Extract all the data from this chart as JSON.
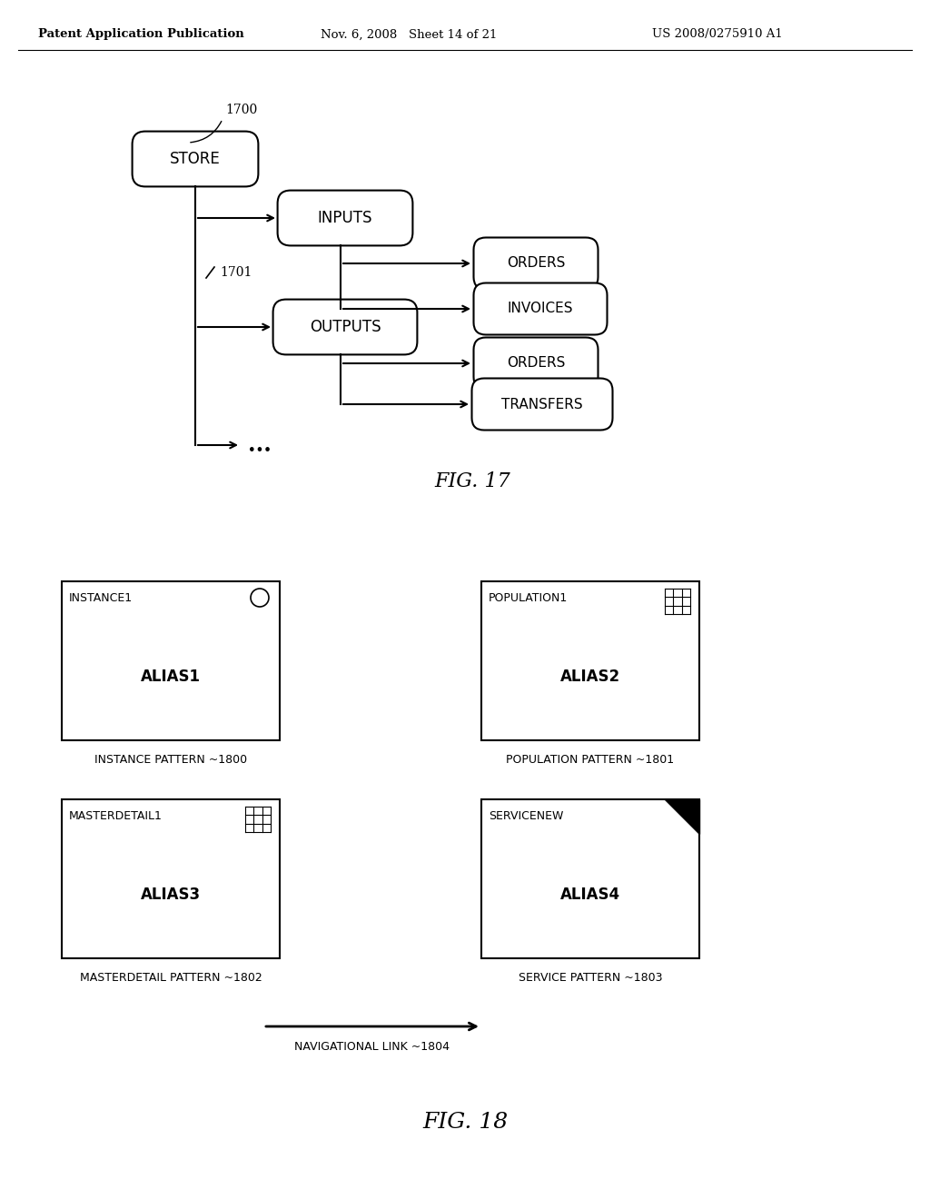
{
  "header_left": "Patent Application Publication",
  "header_mid": "Nov. 6, 2008   Sheet 14 of 21",
  "header_right": "US 2008/0275910 A1",
  "bg_color": "#ffffff",
  "text_color": "#000000",
  "fig17_title": "FIG. 17",
  "fig18_title": "FIG. 18",
  "nav_link_label": "NAVIGATIONAL LINK ~1804"
}
